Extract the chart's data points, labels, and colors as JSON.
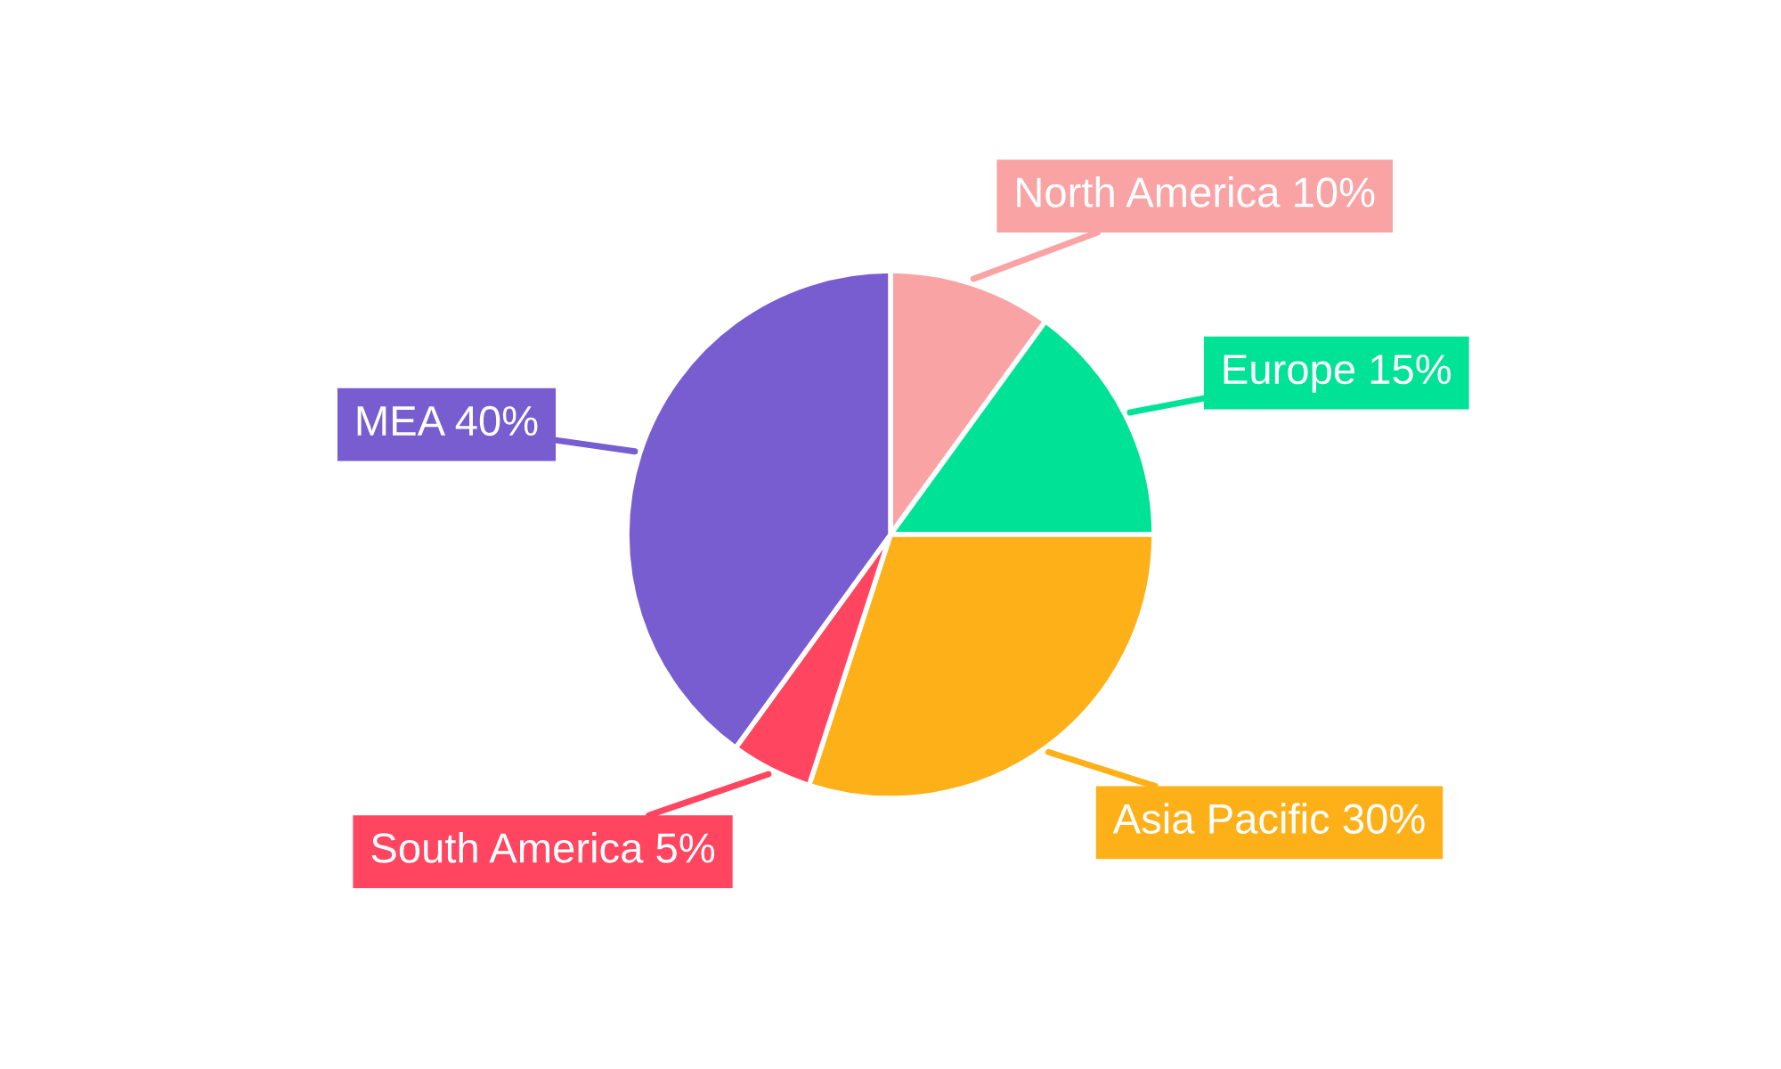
{
  "chart_data": {
    "type": "pie",
    "categories": [
      "North America 10%",
      "Europe 15%",
      "Asia Pacific 30%",
      "South America 5%",
      "MEA 40%"
    ],
    "values": [
      10,
      15,
      30,
      5,
      40
    ],
    "colors": [
      "#f9a3a4",
      "#00e396",
      "#feb019",
      "#ff4560",
      "#775dd0"
    ]
  }
}
